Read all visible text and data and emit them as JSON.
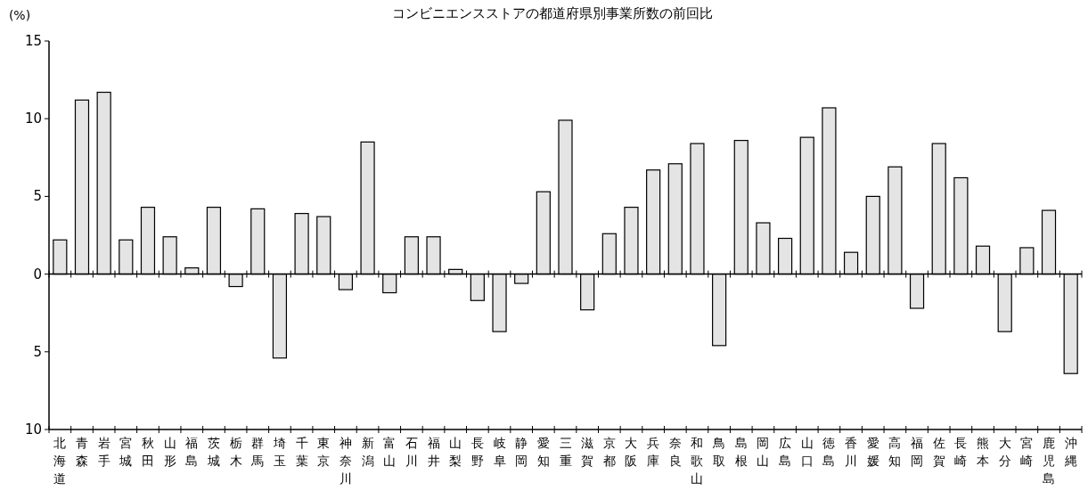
{
  "chart_data": {
    "type": "bar",
    "title": "コンビニエンスストアの都道府県別事業所数の前回比",
    "ylabel": "(%)",
    "categories": [
      "北海道",
      "青森",
      "岩手",
      "宮城",
      "秋田",
      "山形",
      "福島",
      "茨城",
      "栃木",
      "群馬",
      "埼玉",
      "千葉",
      "東京",
      "神奈川",
      "新潟",
      "富山",
      "石川",
      "福井",
      "山梨",
      "長野",
      "岐阜",
      "静岡",
      "愛知",
      "三重",
      "滋賀",
      "京都",
      "大阪",
      "兵庫",
      "奈良",
      "和歌山",
      "鳥取",
      "島根",
      "岡山",
      "広島",
      "山口",
      "徳島",
      "香川",
      "愛媛",
      "高知",
      "福岡",
      "佐賀",
      "長崎",
      "熊本",
      "大分",
      "宮崎",
      "鹿児島",
      "沖縄"
    ],
    "values": [
      2.2,
      11.2,
      11.7,
      2.2,
      4.3,
      2.4,
      0.4,
      4.3,
      -0.8,
      4.2,
      -5.4,
      3.9,
      3.7,
      -1.0,
      8.5,
      -1.2,
      2.4,
      2.4,
      0.3,
      -1.7,
      -3.7,
      -0.6,
      5.3,
      9.9,
      -2.3,
      2.6,
      4.3,
      6.7,
      7.1,
      8.4,
      -4.6,
      8.6,
      3.3,
      2.3,
      8.8,
      10.7,
      1.4,
      5.0,
      6.9,
      -2.2,
      8.4,
      6.2,
      1.8,
      -3.7,
      1.7,
      4.1,
      -6.4
    ],
    "color": "#e4e4e4",
    "ylim": [
      -10,
      15
    ],
    "yticks": [
      {
        "value": -10,
        "label": "10"
      },
      {
        "value": -5,
        "label": "5"
      },
      0,
      5,
      10,
      15
    ],
    "ref_lines": [
      {
        "axis": "y",
        "value": 0
      }
    ]
  }
}
